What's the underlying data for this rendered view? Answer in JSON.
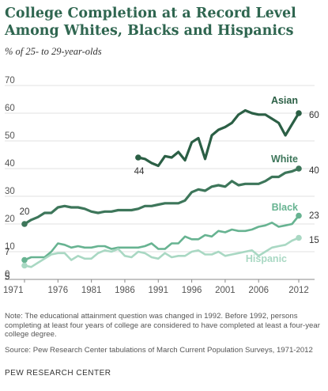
{
  "chart_data": {
    "type": "line",
    "title": "College Completion at a Record Level Among Whites, Blacks and Hispanics",
    "subtitle": "% of 25- to 29-year-olds",
    "ylim": [
      0,
      70
    ],
    "y_ticks": [
      0,
      10,
      20,
      30,
      40,
      50,
      60,
      70
    ],
    "x_ticks": [
      "1971",
      "1976",
      "1981",
      "1986",
      "1991",
      "1996",
      "2001",
      "2006",
      "2012"
    ],
    "x_tick_values": [
      1971,
      1976,
      1981,
      1986,
      1991,
      1996,
      2001,
      2006,
      2012
    ],
    "xlim": [
      1971,
      2012
    ],
    "grid": "horizontal",
    "series": [
      {
        "name": "Asian",
        "color": "#2b5f45",
        "start_label": "44",
        "end_label": "60",
        "x": [
          1988,
          1989,
          1990,
          1991,
          1992,
          1993,
          1994,
          1995,
          1996,
          1997,
          1998,
          1999,
          2000,
          2001,
          2002,
          2003,
          2004,
          2005,
          2006,
          2007,
          2008,
          2009,
          2010,
          2011,
          2012
        ],
        "values": [
          44,
          43.5,
          42,
          41,
          44.5,
          44,
          46,
          43,
          49.5,
          51,
          43.5,
          52,
          54,
          55,
          56.5,
          59.5,
          61,
          60,
          59.5,
          59.5,
          58,
          56.5,
          52,
          56,
          60
        ]
      },
      {
        "name": "White",
        "color": "#3d765a",
        "start_label": "20",
        "end_label": "40",
        "x": [
          1971,
          1972,
          1973,
          1974,
          1975,
          1976,
          1977,
          1978,
          1979,
          1980,
          1981,
          1982,
          1983,
          1984,
          1985,
          1986,
          1987,
          1988,
          1989,
          1990,
          1991,
          1992,
          1993,
          1994,
          1995,
          1996,
          1997,
          1998,
          1999,
          2000,
          2001,
          2002,
          2003,
          2004,
          2005,
          2006,
          2007,
          2008,
          2009,
          2010,
          2011,
          2012
        ],
        "values": [
          20,
          21.5,
          22.5,
          24,
          24,
          26,
          26.5,
          26,
          26,
          25.5,
          24.5,
          24,
          24.5,
          24.5,
          25,
          25,
          25,
          25.5,
          26.5,
          26.5,
          27,
          27.5,
          27.5,
          27.5,
          28.5,
          31.5,
          32.5,
          32,
          33.5,
          34,
          33.5,
          35.5,
          34,
          34.5,
          34.5,
          34.5,
          35.5,
          37,
          37,
          38.5,
          39,
          40
        ]
      },
      {
        "name": "Black",
        "color": "#67b391",
        "start_label": "7",
        "end_label": "23",
        "x": [
          1971,
          1972,
          1973,
          1974,
          1975,
          1976,
          1977,
          1978,
          1979,
          1980,
          1981,
          1982,
          1983,
          1984,
          1985,
          1986,
          1987,
          1988,
          1989,
          1990,
          1991,
          1992,
          1993,
          1994,
          1995,
          1996,
          1997,
          1998,
          1999,
          2000,
          2001,
          2002,
          2003,
          2004,
          2005,
          2006,
          2007,
          2008,
          2009,
          2010,
          2011,
          2012
        ],
        "values": [
          7,
          8,
          8,
          8,
          10,
          13,
          12.5,
          11.5,
          12,
          11.5,
          11.5,
          12,
          12,
          11,
          11.5,
          11.5,
          11.5,
          11.5,
          12,
          13,
          11,
          11,
          13,
          13,
          15.5,
          14.5,
          14.5,
          16,
          15.5,
          17.5,
          17,
          18,
          17.5,
          17.5,
          18,
          19,
          19.5,
          20.5,
          19,
          19.5,
          20,
          23
        ]
      },
      {
        "name": "Hispanic",
        "color": "#a9d8c3",
        "start_label": "5",
        "end_label": "15",
        "x": [
          1971,
          1972,
          1973,
          1974,
          1975,
          1976,
          1977,
          1978,
          1979,
          1980,
          1981,
          1982,
          1983,
          1984,
          1985,
          1986,
          1987,
          1988,
          1989,
          1990,
          1991,
          1992,
          1993,
          1994,
          1995,
          1996,
          1997,
          1998,
          1999,
          2000,
          2001,
          2002,
          2003,
          2004,
          2005,
          2006,
          2007,
          2008,
          2009,
          2010,
          2011,
          2012
        ],
        "values": [
          5,
          4.5,
          6,
          7.5,
          9,
          9.5,
          9.5,
          7,
          8.5,
          7.5,
          7.5,
          9.5,
          10.5,
          10,
          11,
          8.5,
          8,
          10,
          9.5,
          8,
          7.5,
          9.5,
          8,
          8.5,
          8.5,
          10,
          10.5,
          9,
          9,
          10,
          8.5,
          9,
          9.5,
          10,
          10.5,
          8.5,
          10,
          11.5,
          12,
          12.5,
          14,
          15
        ]
      }
    ],
    "note": "Note: The educational attainment question was changed in 1992. Before 1992, persons completing at least four years of college are considered to have completed at least a four-year college degree.",
    "source": "Source: Pew Research Center tabulations of March Current Population Surveys, 1971-2012",
    "org": "PEW RESEARCH CENTER"
  }
}
